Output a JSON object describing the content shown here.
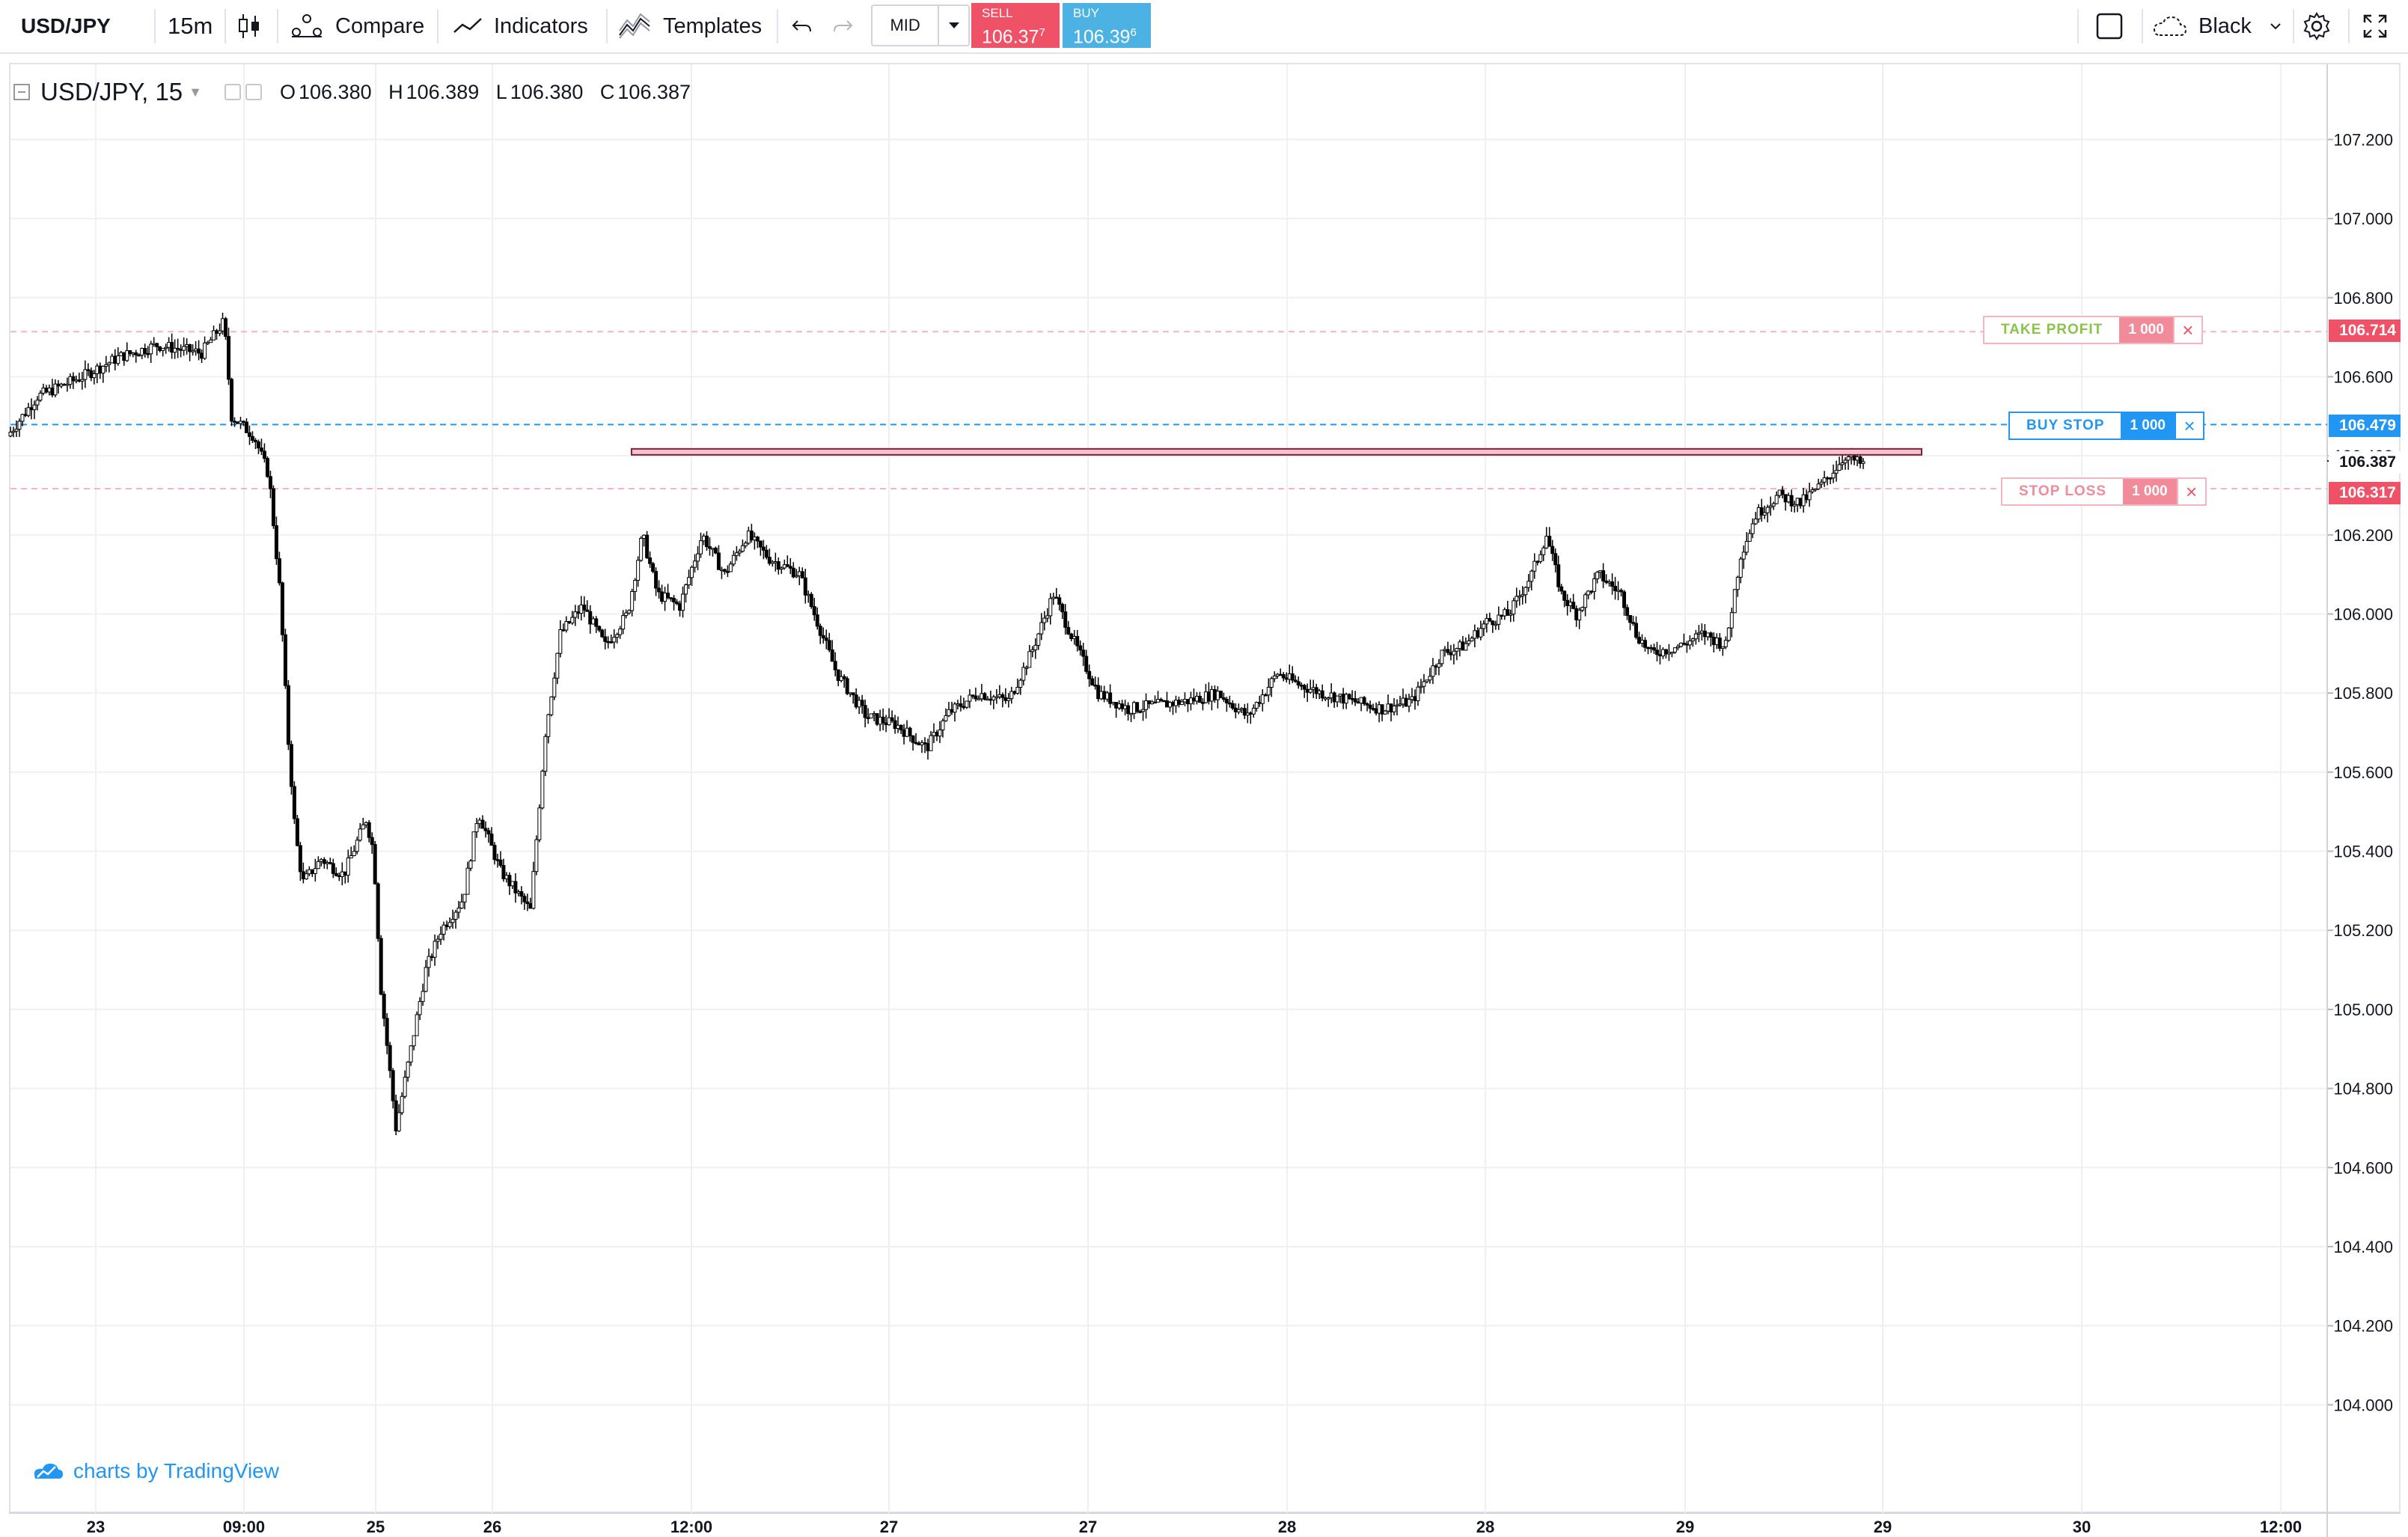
{
  "toolbar": {
    "symbol": "USD/JPY",
    "interval": "15m",
    "compare_label": "Compare",
    "indicators_label": "Indicators",
    "templates_label": "Templates",
    "price_mode": "MID",
    "sell": {
      "label": "SELL",
      "price": "106.37",
      "price_sup": "7"
    },
    "buy": {
      "label": "BUY",
      "price": "106.39",
      "price_sup": "6"
    },
    "theme_label": "Black"
  },
  "legend": {
    "title": "USD/JPY, 15",
    "open_label": "O",
    "open": "106.380",
    "high_label": "H",
    "high": "106.389",
    "low_label": "L",
    "low": "106.380",
    "close_label": "C",
    "close": "106.387"
  },
  "orders": {
    "take_profit": {
      "label": "TAKE PROFIT",
      "qty": "1 000",
      "price": "106.714",
      "color": "#ef5167"
    },
    "buy_stop": {
      "label": "BUY STOP",
      "qty": "1 000",
      "price": "106.479",
      "color": "#2196f3"
    },
    "stop_loss": {
      "label": "STOP LOSS",
      "qty": "1 000",
      "price": "106.317",
      "color": "#ef5167"
    }
  },
  "attribution": "charts by TradingView",
  "chart_data": {
    "type": "candlestick",
    "title": "USD/JPY, 15",
    "x_ticks": [
      "23",
      "09:00",
      "25",
      "26",
      "12:00",
      "27",
      "27",
      "28",
      "28",
      "29",
      "29",
      "30",
      "12:00"
    ],
    "y_ticks": [
      "107.200",
      "107.000",
      "106.800",
      "106.600",
      "106.400",
      "106.200",
      "106.000",
      "105.800",
      "105.600",
      "105.400",
      "105.200",
      "105.000",
      "104.800",
      "104.600",
      "104.400",
      "104.200",
      "104.000"
    ],
    "ylim": [
      103.73,
      107.39
    ],
    "last_price": "106.387",
    "horizontal_level": 106.41,
    "price_path": [
      [
        0,
        106.45
      ],
      [
        40,
        106.55
      ],
      [
        100,
        106.6
      ],
      [
        150,
        106.65
      ],
      [
        200,
        106.68
      ],
      [
        260,
        106.66
      ],
      [
        290,
        106.74
      ],
      [
        300,
        106.5
      ],
      [
        330,
        106.45
      ],
      [
        350,
        106.35
      ],
      [
        365,
        106.05
      ],
      [
        375,
        105.7
      ],
      [
        385,
        105.45
      ],
      [
        395,
        105.32
      ],
      [
        420,
        105.38
      ],
      [
        450,
        105.34
      ],
      [
        480,
        105.48
      ],
      [
        490,
        105.4
      ],
      [
        500,
        105.05
      ],
      [
        520,
        104.7
      ],
      [
        540,
        104.9
      ],
      [
        560,
        105.1
      ],
      [
        580,
        105.2
      ],
      [
        610,
        105.28
      ],
      [
        630,
        105.5
      ],
      [
        660,
        105.35
      ],
      [
        700,
        105.25
      ],
      [
        720,
        105.7
      ],
      [
        740,
        105.95
      ],
      [
        770,
        106.02
      ],
      [
        800,
        105.92
      ],
      [
        830,
        106.0
      ],
      [
        850,
        106.2
      ],
      [
        870,
        106.05
      ],
      [
        900,
        106.02
      ],
      [
        930,
        106.2
      ],
      [
        960,
        106.1
      ],
      [
        990,
        106.2
      ],
      [
        1020,
        106.14
      ],
      [
        1060,
        106.1
      ],
      [
        1090,
        105.95
      ],
      [
        1110,
        105.85
      ],
      [
        1150,
        105.74
      ],
      [
        1190,
        105.72
      ],
      [
        1230,
        105.66
      ],
      [
        1260,
        105.75
      ],
      [
        1300,
        105.8
      ],
      [
        1340,
        105.78
      ],
      [
        1370,
        105.9
      ],
      [
        1400,
        106.05
      ],
      [
        1430,
        105.92
      ],
      [
        1460,
        105.8
      ],
      [
        1500,
        105.76
      ],
      [
        1540,
        105.77
      ],
      [
        1580,
        105.78
      ],
      [
        1620,
        105.8
      ],
      [
        1660,
        105.74
      ],
      [
        1700,
        105.85
      ],
      [
        1730,
        105.82
      ],
      [
        1760,
        105.8
      ],
      [
        1800,
        105.78
      ],
      [
        1840,
        105.76
      ],
      [
        1880,
        105.78
      ],
      [
        1920,
        105.9
      ],
      [
        1950,
        105.92
      ],
      [
        1980,
        105.98
      ],
      [
        2010,
        106.0
      ],
      [
        2040,
        106.1
      ],
      [
        2060,
        106.2
      ],
      [
        2080,
        106.05
      ],
      [
        2100,
        106.0
      ],
      [
        2130,
        106.1
      ],
      [
        2160,
        106.05
      ],
      [
        2180,
        105.95
      ],
      [
        2200,
        105.9
      ],
      [
        2240,
        105.92
      ],
      [
        2270,
        105.95
      ],
      [
        2300,
        105.92
      ],
      [
        2320,
        106.15
      ],
      [
        2340,
        106.25
      ],
      [
        2370,
        106.3
      ],
      [
        2400,
        106.28
      ],
      [
        2430,
        106.33
      ],
      [
        2460,
        106.4
      ],
      [
        2480,
        106.38
      ]
    ]
  }
}
